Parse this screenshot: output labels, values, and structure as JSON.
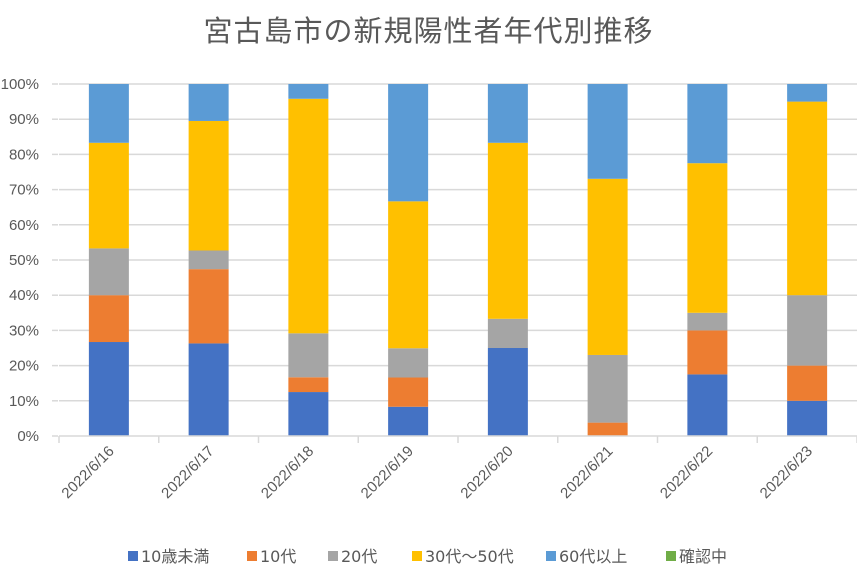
{
  "chart_data": {
    "type": "bar",
    "stacked": true,
    "percent_stacked": true,
    "title": "宮古島市の新規陽性者年代別推移",
    "xlabel": "",
    "ylabel": "",
    "ylim": [
      0,
      100
    ],
    "y_ticks": [
      "0%",
      "10%",
      "20%",
      "30%",
      "40%",
      "50%",
      "60%",
      "70%",
      "80%",
      "90%",
      "100%"
    ],
    "grid": true,
    "legend_position": "bottom",
    "categories": [
      "2022/6/16",
      "2022/6/17",
      "2022/6/18",
      "2022/6/19",
      "2022/6/20",
      "2022/6/21",
      "2022/6/22",
      "2022/6/23"
    ],
    "series": [
      {
        "name": "10歳未満",
        "color": "#4472C4",
        "values": [
          26.7,
          26.3,
          12.5,
          8.3,
          25.0,
          0.0,
          17.5,
          10.0
        ]
      },
      {
        "name": "10代",
        "color": "#ED7D31",
        "values": [
          13.3,
          21.1,
          4.2,
          8.3,
          0.0,
          3.8,
          12.5,
          10.0
        ]
      },
      {
        "name": "20代",
        "color": "#A5A5A5",
        "values": [
          13.3,
          5.3,
          12.5,
          8.3,
          8.3,
          19.2,
          5.0,
          20.0
        ]
      },
      {
        "name": "30代〜50代",
        "color": "#FFC000",
        "values": [
          30.0,
          36.8,
          66.7,
          41.7,
          50.0,
          50.0,
          42.5,
          55.0
        ]
      },
      {
        "name": "60代以上",
        "color": "#5B9BD5",
        "values": [
          16.7,
          10.5,
          4.2,
          33.3,
          16.7,
          26.9,
          22.5,
          5.0
        ]
      },
      {
        "name": "確認中",
        "color": "#70AD47",
        "values": [
          0,
          0,
          0,
          0,
          0,
          0,
          0,
          0
        ]
      }
    ]
  }
}
